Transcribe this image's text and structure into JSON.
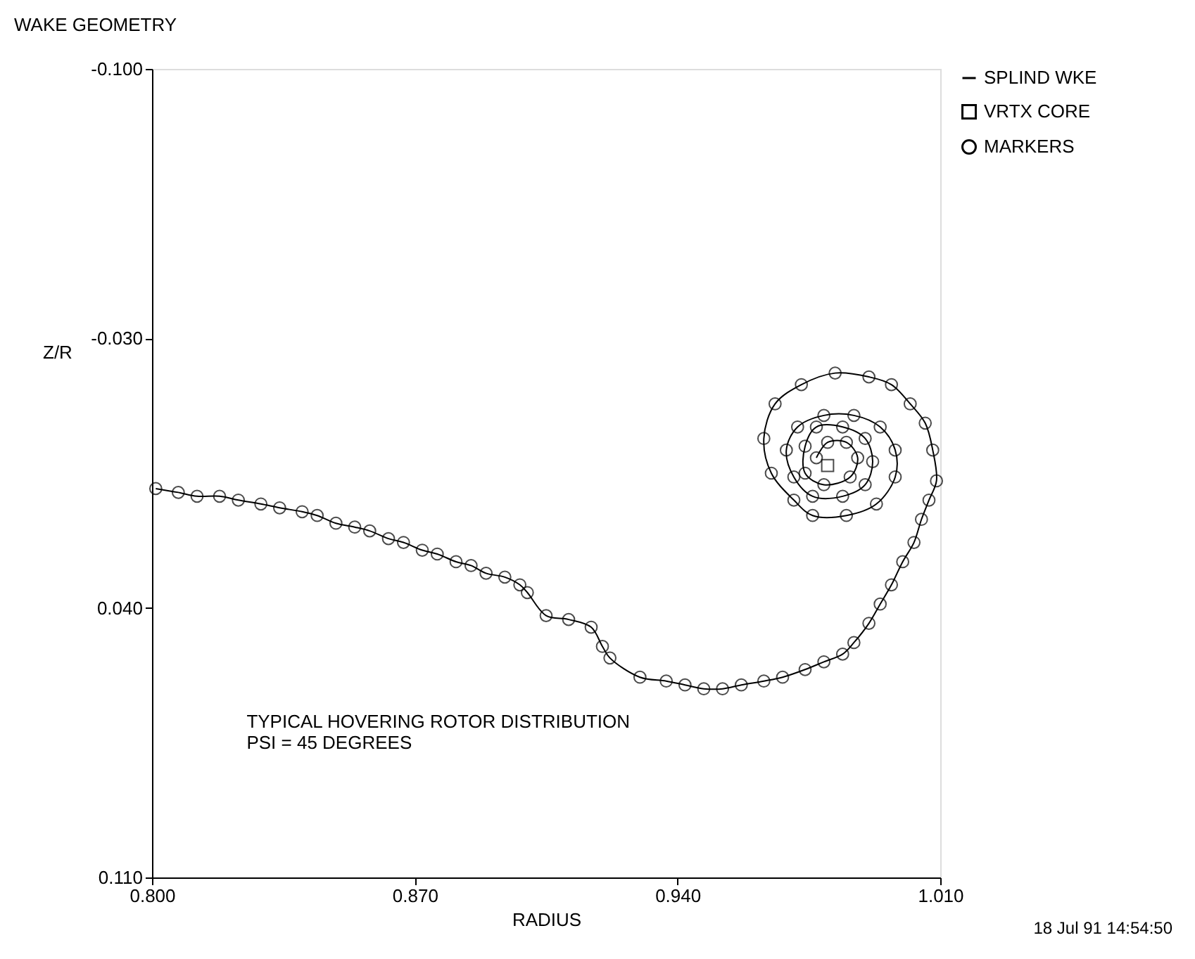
{
  "chart_data": {
    "type": "line",
    "title": "WAKE GEOMETRY",
    "xlabel": "RADIUS",
    "ylabel": "Z/R",
    "xlim": [
      0.8,
      1.01
    ],
    "xticks": [
      {
        "value": 0.8,
        "label": "0.800"
      },
      {
        "value": 0.87,
        "label": "0.870"
      },
      {
        "value": 0.94,
        "label": "0.940"
      },
      {
        "value": 1.01,
        "label": "1.010"
      }
    ],
    "ylim": [
      0.11,
      -0.1
    ],
    "yticks": [
      {
        "value": -0.1,
        "label": "-0.100"
      },
      {
        "value": -0.03,
        "label": "-0.030"
      },
      {
        "value": 0.04,
        "label": "0.040"
      },
      {
        "value": 0.11,
        "label": "0.110"
      }
    ],
    "grid": false,
    "legend": "top right",
    "line_style": "solid",
    "annotations": [
      "TYPICAL HOVERING ROTOR DISTRIBUTION",
      "PSI = 45 DEGREES",
      "18 Jul 91 14:54:50"
    ],
    "series": [
      {
        "name": "SPLIND WKE",
        "marker": "none",
        "color": "#000000",
        "x": [
          0.801,
          0.807,
          0.812,
          0.818,
          0.823,
          0.829,
          0.834,
          0.84,
          0.844,
          0.849,
          0.854,
          0.858,
          0.863,
          0.867,
          0.872,
          0.876,
          0.881,
          0.885,
          0.889,
          0.894,
          0.898,
          0.9,
          0.905,
          0.911,
          0.917,
          0.92,
          0.922,
          0.93,
          0.937,
          0.942,
          0.947,
          0.952,
          0.957,
          0.963,
          0.968,
          0.974,
          0.979,
          0.984,
          0.987,
          0.991,
          0.994,
          0.997,
          1.0,
          1.003,
          1.005,
          1.007,
          1.009,
          1.008,
          1.006,
          1.002,
          0.997,
          0.991,
          0.982,
          0.973,
          0.966,
          0.963,
          0.965,
          0.971,
          0.976,
          0.985,
          0.993,
          0.998,
          0.998,
          0.994,
          0.987,
          0.979,
          0.972,
          0.969,
          0.971,
          0.976,
          0.984,
          0.99,
          0.992,
          0.99,
          0.984,
          0.977,
          0.974,
          0.974,
          0.979,
          0.986,
          0.988,
          0.985,
          0.98,
          0.977
        ],
        "values": [
          0.009,
          0.01,
          0.011,
          0.011,
          0.012,
          0.013,
          0.014,
          0.015,
          0.016,
          0.018,
          0.019,
          0.02,
          0.022,
          0.023,
          0.025,
          0.026,
          0.028,
          0.029,
          0.031,
          0.032,
          0.034,
          0.036,
          0.042,
          0.043,
          0.045,
          0.05,
          0.053,
          0.058,
          0.059,
          0.06,
          0.061,
          0.061,
          0.06,
          0.059,
          0.058,
          0.056,
          0.054,
          0.052,
          0.049,
          0.044,
          0.039,
          0.034,
          0.028,
          0.023,
          0.017,
          0.012,
          0.007,
          -0.001,
          -0.008,
          -0.013,
          -0.018,
          -0.02,
          -0.021,
          -0.018,
          -0.013,
          -0.004,
          0.005,
          0.012,
          0.016,
          0.016,
          0.013,
          0.006,
          -0.001,
          -0.007,
          -0.01,
          -0.01,
          -0.007,
          -0.001,
          0.006,
          0.011,
          0.011,
          0.008,
          0.002,
          -0.004,
          -0.007,
          -0.007,
          -0.002,
          0.005,
          0.008,
          0.006,
          0.001,
          -0.003,
          -0.003,
          0.001
        ]
      },
      {
        "name": "VRTX CORE",
        "type": "scatter",
        "marker": "square",
        "color": "#000000",
        "x": [
          0.98
        ],
        "values": [
          0.003
        ]
      },
      {
        "name": "MARKERS",
        "type": "scatter",
        "marker": "circle",
        "color": "#000000",
        "x": [
          0.801,
          0.807,
          0.812,
          0.818,
          0.823,
          0.829,
          0.834,
          0.84,
          0.844,
          0.849,
          0.854,
          0.858,
          0.863,
          0.867,
          0.872,
          0.876,
          0.881,
          0.885,
          0.889,
          0.894,
          0.898,
          0.9,
          0.905,
          0.911,
          0.917,
          0.92,
          0.922,
          0.93,
          0.937,
          0.942,
          0.947,
          0.952,
          0.957,
          0.963,
          0.968,
          0.974,
          0.979,
          0.984,
          0.987,
          0.991,
          0.994,
          0.997,
          1.0,
          1.003,
          1.005,
          1.007,
          1.009,
          1.008,
          1.006,
          1.002,
          0.997,
          0.991,
          0.982,
          0.973,
          0.966,
          0.963,
          0.965,
          0.971,
          0.976,
          0.985,
          0.993,
          0.998,
          0.998,
          0.994,
          0.987,
          0.979,
          0.972,
          0.969,
          0.971,
          0.976,
          0.984,
          0.99,
          0.992,
          0.99,
          0.984,
          0.977,
          0.974,
          0.974,
          0.979,
          0.986,
          0.988,
          0.985,
          0.98,
          0.977
        ],
        "values": [
          0.009,
          0.01,
          0.011,
          0.011,
          0.012,
          0.013,
          0.014,
          0.015,
          0.016,
          0.018,
          0.019,
          0.02,
          0.022,
          0.023,
          0.025,
          0.026,
          0.028,
          0.029,
          0.031,
          0.032,
          0.034,
          0.036,
          0.042,
          0.043,
          0.045,
          0.05,
          0.053,
          0.058,
          0.059,
          0.06,
          0.061,
          0.061,
          0.06,
          0.059,
          0.058,
          0.056,
          0.054,
          0.052,
          0.049,
          0.044,
          0.039,
          0.034,
          0.028,
          0.023,
          0.017,
          0.012,
          0.007,
          -0.001,
          -0.008,
          -0.013,
          -0.018,
          -0.02,
          -0.021,
          -0.018,
          -0.013,
          -0.004,
          0.005,
          0.012,
          0.016,
          0.016,
          0.013,
          0.006,
          -0.001,
          -0.007,
          -0.01,
          -0.01,
          -0.007,
          -0.001,
          0.006,
          0.011,
          0.011,
          0.008,
          0.002,
          -0.004,
          -0.007,
          -0.007,
          -0.002,
          0.005,
          0.008,
          0.006,
          0.001,
          -0.003,
          -0.003,
          0.001
        ]
      }
    ]
  }
}
